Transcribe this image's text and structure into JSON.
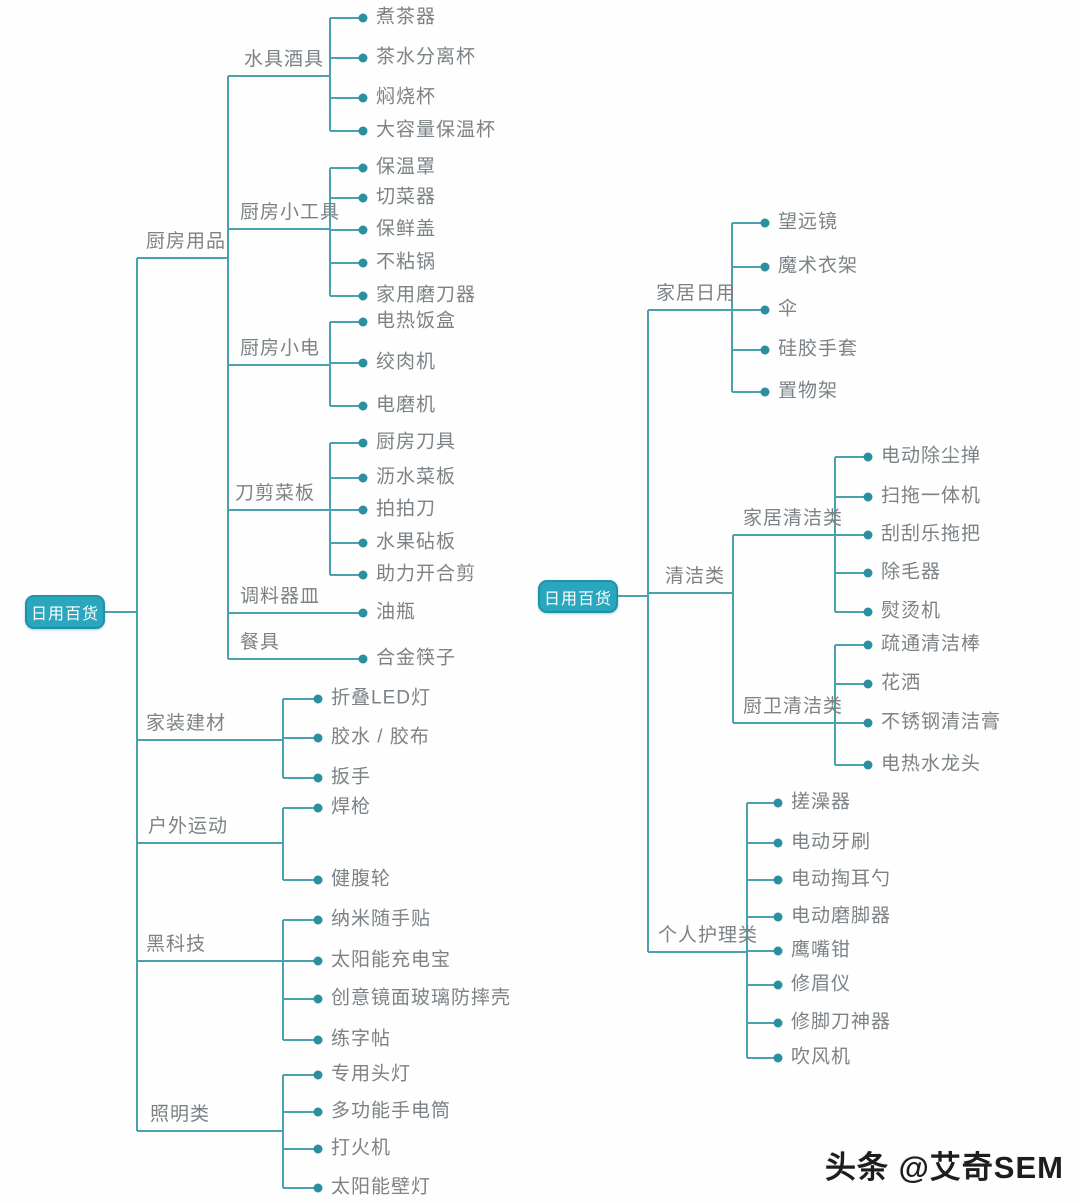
{
  "colors": {
    "line": "#4aa2ae",
    "dot": "#2b8fa0",
    "root_fill": "#2ba7bd",
    "root_border": "#1d93aa",
    "label_text": "#7c8285",
    "root_text": "#ffffff"
  },
  "watermark": {
    "text": "头条 @艾奇SEM"
  },
  "trees": [
    {
      "root": {
        "label": "日用百货"
      },
      "branches": [
        {
          "label": "厨房用品",
          "children": [
            {
              "label": "水具酒具",
              "children": [
                {
                  "label": "煮茶器"
                },
                {
                  "label": "茶水分离杯"
                },
                {
                  "label": "焖烧杯"
                },
                {
                  "label": "大容量保温杯"
                }
              ]
            },
            {
              "label": "厨房小工具",
              "children": [
                {
                  "label": "保温罩"
                },
                {
                  "label": "切菜器"
                },
                {
                  "label": "保鲜盖"
                },
                {
                  "label": "不粘锅"
                },
                {
                  "label": "家用磨刀器"
                }
              ]
            },
            {
              "label": "厨房小电",
              "children": [
                {
                  "label": "电热饭盒"
                },
                {
                  "label": "绞肉机"
                },
                {
                  "label": "电磨机"
                }
              ]
            },
            {
              "label": "刀剪菜板",
              "children": [
                {
                  "label": "厨房刀具"
                },
                {
                  "label": "沥水菜板"
                },
                {
                  "label": "拍拍刀"
                },
                {
                  "label": "水果砧板"
                },
                {
                  "label": "助力开合剪"
                }
              ]
            },
            {
              "label": "调料器皿",
              "children": [
                {
                  "label": "油瓶"
                }
              ]
            },
            {
              "label": "餐具",
              "children": [
                {
                  "label": "合金筷子"
                }
              ]
            }
          ]
        },
        {
          "label": "家装建材",
          "children": [
            {
              "label": "折叠LED灯"
            },
            {
              "label": "胶水 / 胶布"
            },
            {
              "label": "扳手"
            }
          ]
        },
        {
          "label": "户外运动",
          "children": [
            {
              "label": "焊枪"
            },
            {
              "label": "健腹轮"
            }
          ]
        },
        {
          "label": "黑科技",
          "children": [
            {
              "label": "纳米随手贴"
            },
            {
              "label": "太阳能充电宝"
            },
            {
              "label": "创意镜面玻璃防摔壳"
            },
            {
              "label": "练字帖"
            }
          ]
        },
        {
          "label": "照明类",
          "children": [
            {
              "label": "专用头灯"
            },
            {
              "label": "多功能手电筒"
            },
            {
              "label": "打火机"
            },
            {
              "label": "太阳能壁灯"
            }
          ]
        }
      ]
    },
    {
      "root": {
        "label": "日用百货"
      },
      "branches": [
        {
          "label": "家居日用",
          "children": [
            {
              "label": "望远镜"
            },
            {
              "label": "魔术衣架"
            },
            {
              "label": "伞"
            },
            {
              "label": "硅胶手套"
            },
            {
              "label": "置物架"
            }
          ]
        },
        {
          "label": "清洁类",
          "children": [
            {
              "label": "家居清洁类",
              "children": [
                {
                  "label": "电动除尘掸"
                },
                {
                  "label": "扫拖一体机"
                },
                {
                  "label": "刮刮乐拖把"
                },
                {
                  "label": "除毛器"
                },
                {
                  "label": "熨烫机"
                }
              ]
            },
            {
              "label": "厨卫清洁类",
              "children": [
                {
                  "label": "疏通清洁棒"
                },
                {
                  "label": "花洒"
                },
                {
                  "label": "不锈钢清洁膏"
                },
                {
                  "label": "电热水龙头"
                }
              ]
            }
          ]
        },
        {
          "label": "个人护理类",
          "children": [
            {
              "label": "搓澡器"
            },
            {
              "label": "电动牙刷"
            },
            {
              "label": "电动掏耳勺"
            },
            {
              "label": "电动磨脚器"
            },
            {
              "label": "鹰嘴钳"
            },
            {
              "label": "修眉仪"
            },
            {
              "label": "修脚刀神器"
            },
            {
              "label": "吹风机"
            }
          ]
        }
      ]
    }
  ]
}
